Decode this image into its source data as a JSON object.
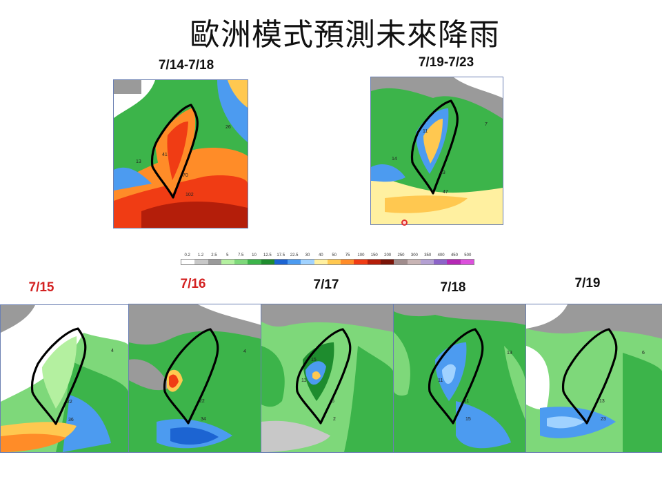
{
  "title": "歐洲模式預測未來降雨",
  "top_maps": [
    {
      "period": "7/14-7/18",
      "numbers": [
        "26",
        "13",
        "70",
        "102",
        "41"
      ]
    },
    {
      "period": "7/19-7/23",
      "numbers": [
        "11",
        "14",
        "23",
        "47",
        "7"
      ]
    }
  ],
  "daily_maps": [
    {
      "date": "7/15",
      "highlight": true,
      "numbers": [
        "22",
        "36",
        "4"
      ]
    },
    {
      "date": "7/16",
      "highlight": true,
      "numbers": [
        "22",
        "34",
        "4"
      ]
    },
    {
      "date": "7/17",
      "highlight": false,
      "numbers": [
        "15",
        "11",
        "6",
        "2"
      ]
    },
    {
      "date": "7/18",
      "highlight": false,
      "numbers": [
        "11",
        "11",
        "15",
        "13"
      ]
    },
    {
      "date": "7/19",
      "highlight": false,
      "numbers": [
        "13",
        "23",
        "6"
      ]
    }
  ],
  "colorbar": {
    "ticks": [
      "0.2",
      "1.2",
      "2.5",
      "5",
      "7.5",
      "10",
      "12.5",
      "17.5",
      "22.5",
      "30",
      "40",
      "50",
      "75",
      "100",
      "150",
      "200",
      "250",
      "300",
      "350",
      "400",
      "450",
      "500"
    ],
    "colors": [
      "#ffffff",
      "#c8c8c8",
      "#9a9a9a",
      "#b4f0a0",
      "#7ed87a",
      "#3cb44a",
      "#1e8c2e",
      "#1c64d2",
      "#4c9bf0",
      "#a0d2ff",
      "#fff0a0",
      "#ffc850",
      "#ff8c28",
      "#f03c14",
      "#b41e0a",
      "#7a1408",
      "#a08c8c",
      "#c8b4b4",
      "#b4a0d2",
      "#8c64c8",
      "#b428b4",
      "#dc50dc"
    ]
  },
  "accent_red": "#d32020"
}
